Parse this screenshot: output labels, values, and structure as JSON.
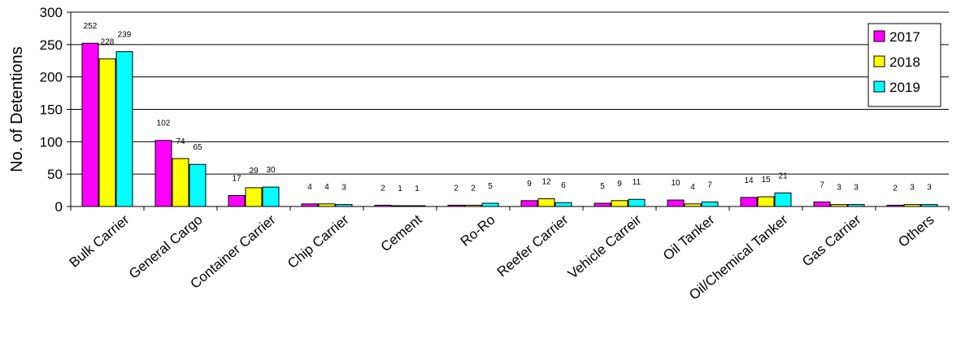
{
  "chart_data": {
    "type": "bar",
    "title": "",
    "xlabel": "",
    "ylabel": "No. of Detentions",
    "ylim": [
      0,
      300
    ],
    "yticks": [
      "0",
      "50",
      "100",
      "150",
      "200",
      "250",
      "300"
    ],
    "grid": true,
    "legend_position": "top-right",
    "categories": [
      "Bulk Carrier",
      "General Cargo",
      "Container Carrier",
      "Chip Carrier",
      "Cement",
      "Ro-Ro",
      "Reefer Carrier",
      "Vehicle Carreir",
      "Oil Tanker",
      "Oil/Chemical Tanker",
      "Gas Carrier",
      "Others"
    ],
    "series": [
      {
        "name": "2017",
        "color": "#ff00ff",
        "values": [
          252,
          102,
          17,
          4,
          2,
          2,
          9,
          5,
          10,
          14,
          7,
          2
        ]
      },
      {
        "name": "2018",
        "color": "#ffff00",
        "values": [
          228,
          74,
          29,
          4,
          1,
          2,
          12,
          9,
          4,
          15,
          3,
          3
        ]
      },
      {
        "name": "2019",
        "color": "#00ffff",
        "values": [
          239,
          65,
          30,
          3,
          1,
          5,
          6,
          11,
          7,
          21,
          3,
          3
        ]
      }
    ]
  }
}
